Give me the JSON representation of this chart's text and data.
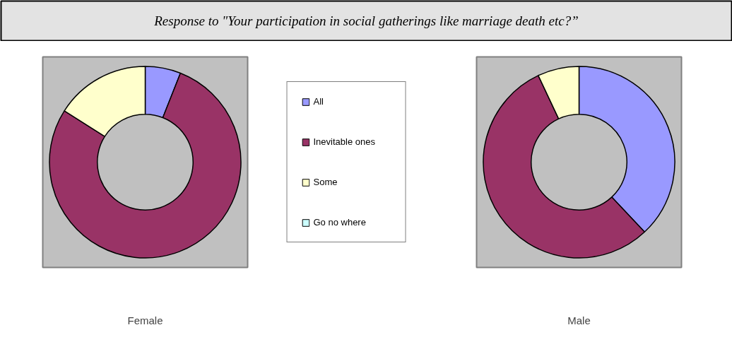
{
  "chart_data": [
    {
      "type": "donut",
      "title": "Response to \"Your participation in social gatherings like marriage death etc?”",
      "xlabel": "Female",
      "legend": "right",
      "categories": [
        "All",
        "Inevitable ones",
        "Some",
        "Go no where"
      ],
      "values": [
        6,
        78,
        16,
        0
      ],
      "colors": [
        "#9999ff",
        "#993366",
        "#ffffcc",
        "#ccffff"
      ]
    },
    {
      "type": "donut",
      "xlabel": "Male",
      "values": [
        38,
        55,
        7,
        0
      ],
      "colors": [
        "#9999ff",
        "#993366",
        "#ffffcc",
        "#ccffff"
      ]
    }
  ]
}
